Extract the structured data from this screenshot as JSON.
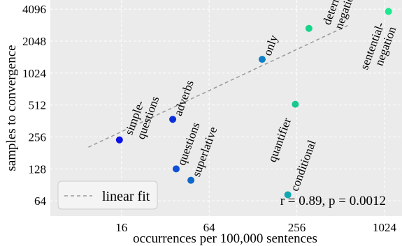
{
  "chart_data": {
    "type": "scatter",
    "title": "",
    "xlabel": "occurrences per 100,000 sentences",
    "ylabel": "samples to convergence",
    "xscale": "log2",
    "yscale": "log2",
    "xlim": [
      5.2,
      1350
    ],
    "ylim": [
      46,
      5000
    ],
    "xticks": [
      16,
      64,
      256,
      1024
    ],
    "xtick_labels": [
      "16",
      "64",
      "256",
      "1024"
    ],
    "yticks": [
      64,
      128,
      256,
      512,
      1024,
      2048,
      4096
    ],
    "ytick_labels": [
      "64",
      "128",
      "256",
      "512",
      "1024",
      "2048",
      "4096"
    ],
    "grid": true,
    "legend": {
      "position": "bottom-left",
      "entries": [
        {
          "label": "linear fit",
          "style": "dashed",
          "color": "#999999"
        }
      ]
    },
    "annotation": "r = 0.89, p = 0.0012",
    "points": [
      {
        "label": "simple-\nquestions",
        "x": 15.5,
        "y": 240,
        "color": "#0a10e6"
      },
      {
        "label": "adverbs",
        "x": 36,
        "y": 375,
        "color": "#0b30d8"
      },
      {
        "label": "questions",
        "x": 38,
        "y": 128,
        "color": "#1050d8"
      },
      {
        "label": "superlative",
        "x": 48,
        "y": 100,
        "color": "#1068c8"
      },
      {
        "label": "only",
        "x": 148,
        "y": 1380,
        "color": "#0d80c8"
      },
      {
        "label": "conditional",
        "x": 222,
        "y": 73,
        "color": "#11a8b0"
      },
      {
        "label": "quantifier",
        "x": 250,
        "y": 520,
        "color": "#17c890"
      },
      {
        "label": "determiner-\nnegation",
        "x": 310,
        "y": 2700,
        "color": "#16d48a"
      },
      {
        "label": "sentential-\nnegation",
        "x": 1090,
        "y": 3900,
        "color": "#1de890"
      }
    ],
    "fit": {
      "label": "linear fit",
      "x": [
        9.5,
        580
      ],
      "y": [
        205,
        2900
      ]
    }
  }
}
